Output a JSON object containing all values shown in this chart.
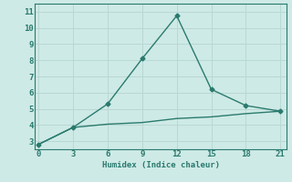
{
  "xlabel": "Humidex (Indice chaleur)",
  "ylabel": "",
  "background_color": "#ceeae6",
  "grid_color": "#b8d8d4",
  "line_color": "#2a7a6e",
  "line1_x": [
    0,
    3,
    6,
    9,
    12,
    15,
    18,
    21
  ],
  "line1_y": [
    2.8,
    3.85,
    5.3,
    8.1,
    10.75,
    6.2,
    5.2,
    4.85
  ],
  "line2_x": [
    0,
    3,
    6,
    9,
    12,
    15,
    18,
    21
  ],
  "line2_y": [
    2.8,
    3.85,
    4.05,
    4.15,
    4.4,
    4.5,
    4.7,
    4.85
  ],
  "xlim": [
    -0.3,
    21.5
  ],
  "ylim": [
    2.5,
    11.5
  ],
  "xticks": [
    0,
    3,
    6,
    9,
    12,
    15,
    18,
    21
  ],
  "yticks": [
    3,
    4,
    5,
    6,
    7,
    8,
    9,
    10,
    11
  ],
  "marker": "D",
  "markersize": 2.5,
  "linewidth": 1.0
}
